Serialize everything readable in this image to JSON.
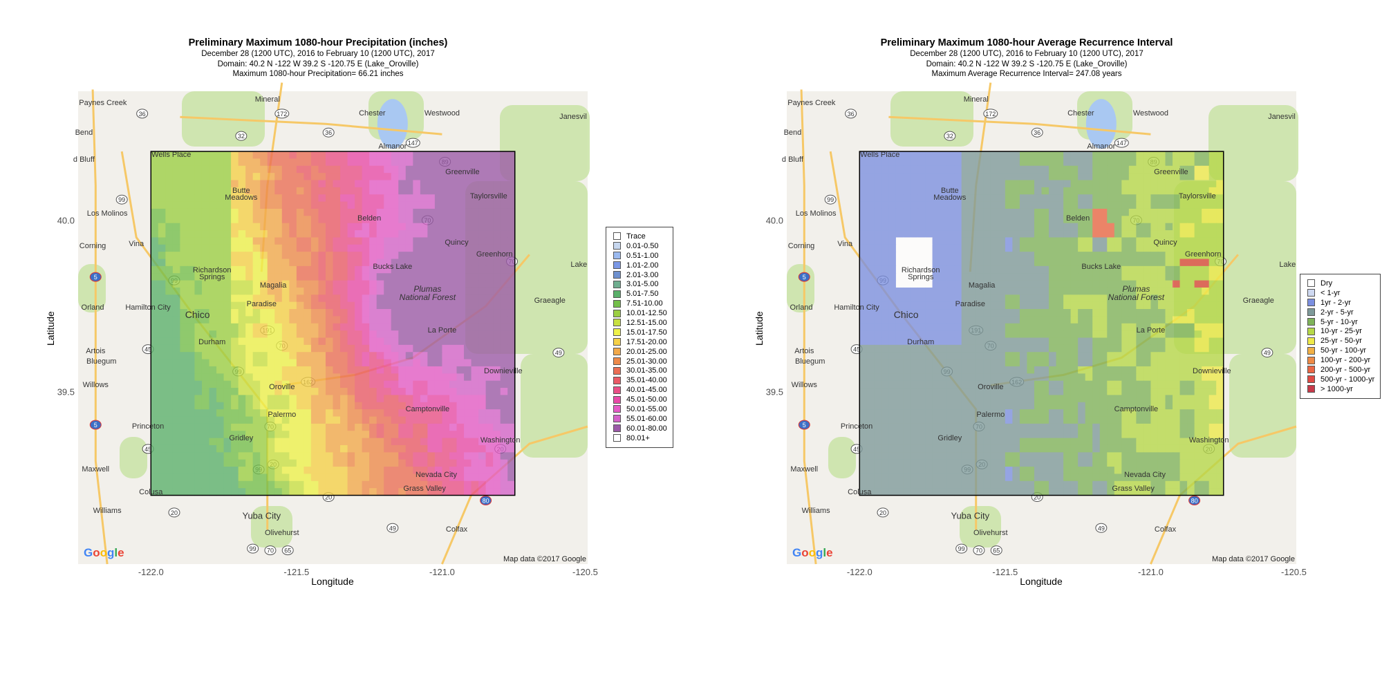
{
  "map_left": {
    "title": "Preliminary Maximum 1080-hour Precipitation (inches)",
    "subtitle_dates": "December 28 (1200 UTC), 2016 to February 10 (1200 UTC), 2017",
    "subtitle_domain": "Domain: 40.2 N -122 W 39.2 S -120.75 E (Lake_Oroville)",
    "subtitle_max": "Maximum 1080-hour Precipitation= 66.21 inches",
    "legend": [
      {
        "label": "Trace",
        "color": "#ffffff"
      },
      {
        "label": "0.01-0.50",
        "color": "#c7d7ef"
      },
      {
        "label": "0.51-1.00",
        "color": "#9bbaf0"
      },
      {
        "label": "1.01-2.00",
        "color": "#7b98e6"
      },
      {
        "label": "2.01-3.00",
        "color": "#6f91cf"
      },
      {
        "label": "3.01-5.00",
        "color": "#6fae8f"
      },
      {
        "label": "5.01-7.50",
        "color": "#5ab06a"
      },
      {
        "label": "7.51-10.00",
        "color": "#74bf4a"
      },
      {
        "label": "10.01-12.50",
        "color": "#9ccf43"
      },
      {
        "label": "12.51-15.00",
        "color": "#c8e041"
      },
      {
        "label": "15.01-17.50",
        "color": "#eef24a"
      },
      {
        "label": "17.51-20.00",
        "color": "#f5d148"
      },
      {
        "label": "20.01-25.00",
        "color": "#f2a94a"
      },
      {
        "label": "25.01-30.00",
        "color": "#ee8a4a"
      },
      {
        "label": "30.01-35.00",
        "color": "#eb6e55"
      },
      {
        "label": "35.01-40.00",
        "color": "#ea5a66"
      },
      {
        "label": "40.01-45.00",
        "color": "#ea4f86"
      },
      {
        "label": "45.01-50.00",
        "color": "#e94aa8"
      },
      {
        "label": "50.01-55.00",
        "color": "#e55bc6"
      },
      {
        "label": "55.01-60.00",
        "color": "#d462c9"
      },
      {
        "label": "60.01-80.00",
        "color": "#9c5aa8"
      },
      {
        "label": "80.01+",
        "color": "#ffffff"
      }
    ]
  },
  "map_right": {
    "title": "Preliminary Maximum 1080-hour Average Recurrence Interval",
    "subtitle_dates": "December 28 (1200 UTC), 2016 to February 10 (1200 UTC), 2017",
    "subtitle_domain": "Domain: 40.2 N -122 W 39.2 S -120.75 E (Lake_Oroville)",
    "subtitle_max": "Maximum Average Recurrence Interval= 247.08 years",
    "legend": [
      {
        "label": "Dry",
        "color": "#ffffff"
      },
      {
        "label": "< 1-yr",
        "color": "#cfd9f1"
      },
      {
        "label": "1yr - 2-yr",
        "color": "#7b8fe0"
      },
      {
        "label": "2-yr - 5-yr",
        "color": "#7e9a9a"
      },
      {
        "label": "5-yr - 10-yr",
        "color": "#7fb35a"
      },
      {
        "label": "10-yr - 25-yr",
        "color": "#b6d848"
      },
      {
        "label": "25-yr - 50-yr",
        "color": "#eee949"
      },
      {
        "label": "50-yr - 100-yr",
        "color": "#f1b045"
      },
      {
        "label": "100-yr - 200-yr",
        "color": "#ee8a45"
      },
      {
        "label": "200-yr - 500-yr",
        "color": "#ea6644"
      },
      {
        "label": "500-yr - 1000-yr",
        "color": "#e04a44"
      },
      {
        "label": "> 1000-yr",
        "color": "#c83a4a"
      }
    ]
  },
  "axes": {
    "x_label": "Longitude",
    "y_label": "Latitude",
    "x_ticks": [
      "-122.0",
      "-121.5",
      "-121.0",
      "-120.5"
    ],
    "y_ticks": [
      "40.0",
      "39.5"
    ],
    "xlim": [
      -122.25,
      -120.5
    ],
    "ylim": [
      39.0,
      40.375
    ],
    "domain_box": {
      "west": -122.0,
      "east": -120.75,
      "south": 39.2,
      "north": 40.2
    }
  },
  "basemap": {
    "attribution": "Map data ©2017 Google",
    "logo": "Google",
    "places": [
      {
        "name": "Paynes Creek",
        "lon": -122.165,
        "lat": 40.34
      },
      {
        "name": "Mineral",
        "lon": -121.6,
        "lat": 40.35
      },
      {
        "name": "Chester",
        "lon": -121.24,
        "lat": 40.31
      },
      {
        "name": "Westwood",
        "lon": -121.0,
        "lat": 40.31
      },
      {
        "name": "Janesvil",
        "lon": -120.55,
        "lat": 40.3
      },
      {
        "name": "Bend",
        "lon": -122.23,
        "lat": 40.255
      },
      {
        "name": "Almanor",
        "lon": -121.17,
        "lat": 40.215
      },
      {
        "name": "Wells Place",
        "lon": -121.93,
        "lat": 40.19
      },
      {
        "name": "d Bluff",
        "lon": -122.23,
        "lat": 40.175
      },
      {
        "name": "Greenville",
        "lon": -120.93,
        "lat": 40.14
      },
      {
        "name": "Taylorsville",
        "lon": -120.84,
        "lat": 40.07
      },
      {
        "name": "Butte",
        "lon": -121.69,
        "lat": 40.085
      },
      {
        "name": "Meadows",
        "lon": -121.69,
        "lat": 40.065
      },
      {
        "name": "Los Molinos",
        "lon": -122.15,
        "lat": 40.02
      },
      {
        "name": "Belden",
        "lon": -121.25,
        "lat": 40.005
      },
      {
        "name": "Corning",
        "lon": -122.2,
        "lat": 39.925
      },
      {
        "name": "Vina",
        "lon": -122.05,
        "lat": 39.93
      },
      {
        "name": "Quincy",
        "lon": -120.95,
        "lat": 39.935
      },
      {
        "name": "Greenhorn",
        "lon": -120.82,
        "lat": 39.9
      },
      {
        "name": "Lake",
        "lon": -120.53,
        "lat": 39.87
      },
      {
        "name": "Richardson",
        "lon": -121.79,
        "lat": 39.855
      },
      {
        "name": "Springs",
        "lon": -121.79,
        "lat": 39.835
      },
      {
        "name": "Bucks Lake",
        "lon": -121.17,
        "lat": 39.865
      },
      {
        "name": "Magalia",
        "lon": -121.58,
        "lat": 39.81
      },
      {
        "name": "Plumas",
        "lon": -121.05,
        "lat": 39.8
      },
      {
        "name": "National Forest",
        "lon": -121.05,
        "lat": 39.775
      },
      {
        "name": "Graeagle",
        "lon": -120.63,
        "lat": 39.765
      },
      {
        "name": "Orland",
        "lon": -122.2,
        "lat": 39.745
      },
      {
        "name": "Hamilton City",
        "lon": -122.01,
        "lat": 39.745
      },
      {
        "name": "Paradise",
        "lon": -121.62,
        "lat": 39.755
      },
      {
        "name": "Chico",
        "lon": -121.84,
        "lat": 39.725
      },
      {
        "name": "La Porte",
        "lon": -121.0,
        "lat": 39.68
      },
      {
        "name": "Artois",
        "lon": -122.19,
        "lat": 39.62
      },
      {
        "name": "Bluegum",
        "lon": -122.17,
        "lat": 39.59
      },
      {
        "name": "Durham",
        "lon": -121.79,
        "lat": 39.645
      },
      {
        "name": "Downieville",
        "lon": -120.79,
        "lat": 39.56
      },
      {
        "name": "Willows",
        "lon": -122.19,
        "lat": 39.52
      },
      {
        "name": "Oroville",
        "lon": -121.55,
        "lat": 39.515
      },
      {
        "name": "Camptonville",
        "lon": -121.05,
        "lat": 39.45
      },
      {
        "name": "Palermo",
        "lon": -121.55,
        "lat": 39.435
      },
      {
        "name": "Princeton",
        "lon": -122.01,
        "lat": 39.4
      },
      {
        "name": "Gridley",
        "lon": -121.69,
        "lat": 39.365
      },
      {
        "name": "Washington",
        "lon": -120.8,
        "lat": 39.36
      },
      {
        "name": "Maxwell",
        "lon": -122.19,
        "lat": 39.275
      },
      {
        "name": "Nevada City",
        "lon": -121.02,
        "lat": 39.26
      },
      {
        "name": "Colusa",
        "lon": -122.0,
        "lat": 39.21
      },
      {
        "name": "Grass Valley",
        "lon": -121.06,
        "lat": 39.22
      },
      {
        "name": "Williams",
        "lon": -122.15,
        "lat": 39.155
      },
      {
        "name": "Yuba City",
        "lon": -121.62,
        "lat": 39.14
      },
      {
        "name": "Olivehurst",
        "lon": -121.55,
        "lat": 39.09
      },
      {
        "name": "Colfax",
        "lon": -120.95,
        "lat": 39.1
      }
    ],
    "shields": [
      {
        "num": "36",
        "lon": -122.03,
        "lat": 40.31
      },
      {
        "num": "172",
        "lon": -121.55,
        "lat": 40.31
      },
      {
        "num": "32",
        "lon": -121.69,
        "lat": 40.245
      },
      {
        "num": "36",
        "lon": -121.39,
        "lat": 40.255
      },
      {
        "num": "147",
        "lon": -121.1,
        "lat": 40.225
      },
      {
        "num": "89",
        "lon": -120.99,
        "lat": 40.17
      },
      {
        "num": "99",
        "lon": -122.1,
        "lat": 40.06
      },
      {
        "num": "70",
        "lon": -121.05,
        "lat": 40.0
      },
      {
        "num": "70",
        "lon": -120.76,
        "lat": 39.88
      },
      {
        "num": "5",
        "lon": -122.19,
        "lat": 39.835
      },
      {
        "num": "99",
        "lon": -121.92,
        "lat": 39.825
      },
      {
        "num": "191",
        "lon": -121.6,
        "lat": 39.68
      },
      {
        "num": "70",
        "lon": -121.55,
        "lat": 39.635
      },
      {
        "num": "45",
        "lon": -122.01,
        "lat": 39.625
      },
      {
        "num": "49",
        "lon": -120.6,
        "lat": 39.615
      },
      {
        "num": "99",
        "lon": -121.7,
        "lat": 39.56
      },
      {
        "num": "162",
        "lon": -121.46,
        "lat": 39.53
      },
      {
        "num": "5",
        "lon": -122.19,
        "lat": 39.405
      },
      {
        "num": "70",
        "lon": -121.59,
        "lat": 39.4
      },
      {
        "num": "45",
        "lon": -122.01,
        "lat": 39.335
      },
      {
        "num": "20",
        "lon": -120.8,
        "lat": 39.335
      },
      {
        "num": "99",
        "lon": -121.63,
        "lat": 39.275
      },
      {
        "num": "20",
        "lon": -121.58,
        "lat": 39.29
      },
      {
        "num": "20",
        "lon": -121.39,
        "lat": 39.195
      },
      {
        "num": "80",
        "lon": -120.85,
        "lat": 39.185
      },
      {
        "num": "20",
        "lon": -121.92,
        "lat": 39.15
      },
      {
        "num": "49",
        "lon": -121.17,
        "lat": 39.105
      },
      {
        "num": "99",
        "lon": -121.65,
        "lat": 39.045
      },
      {
        "num": "70",
        "lon": -121.59,
        "lat": 39.04
      },
      {
        "num": "65",
        "lon": -121.53,
        "lat": 39.04
      }
    ]
  }
}
